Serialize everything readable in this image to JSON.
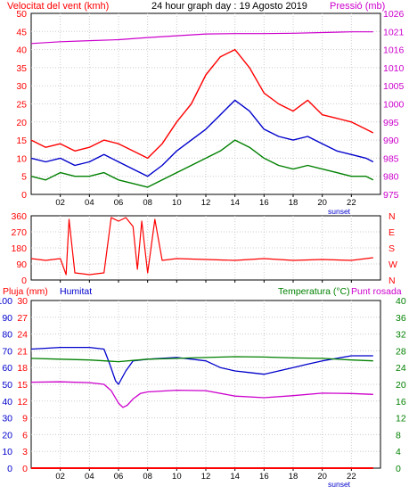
{
  "colors": {
    "background": "#ffffff",
    "frame": "#000000",
    "grid": "#cccccc",
    "speed": "#ff0000",
    "gust": "#ff0000",
    "avg_wind": "#0000cc",
    "low_wind": "#008000",
    "pressure": "#cc00cc",
    "direction": "#ff0000",
    "temperature": "#008000",
    "humidity": "#0000cc",
    "dewpoint": "#cc00cc",
    "rain": "#ff0000",
    "sunset": "#0000cc"
  },
  "header": {
    "left": "Velocitat del vent (kmh)",
    "center": "24 hour graph day : 19 Agosto 2019",
    "right": "Pressió (mb)"
  },
  "panel3_header": {
    "rain": "Pluja (mm)",
    "humidity": "Humitat",
    "temperature": "Temperatura (°C)",
    "dewpoint": "Punt rosada"
  },
  "sunset_label": "sunset",
  "chart_data": [
    {
      "type": "line",
      "title": "",
      "xlabel": "",
      "x_ticks": [
        "02",
        "04",
        "06",
        "08",
        "10",
        "12",
        "14",
        "16",
        "18",
        "20",
        "22"
      ],
      "x_range_hours": [
        0,
        24
      ],
      "y_left_label": "Velocitat del vent (kmh)",
      "y_left_ticks": [
        0,
        5,
        10,
        15,
        20,
        25,
        30,
        35,
        40,
        45,
        50
      ],
      "y_left_range": [
        0,
        50
      ],
      "y_right_label": "Pressió (mb)",
      "y_right_ticks": [
        975,
        980,
        985,
        990,
        995,
        1000,
        1005,
        1010,
        1016,
        1021,
        1026
      ],
      "y_right_range": [
        975,
        1026
      ],
      "grid": true,
      "series": [
        {
          "key": "gust",
          "hours": [
            0,
            1,
            2,
            3,
            4,
            5,
            6,
            7,
            8,
            9,
            10,
            11,
            12,
            13,
            14,
            15,
            16,
            17,
            18,
            19,
            20,
            21,
            22,
            23,
            23.5
          ],
          "values": [
            15,
            13,
            14,
            12,
            13,
            15,
            14,
            12,
            10,
            14,
            20,
            25,
            33,
            38,
            40,
            35,
            28,
            25,
            23,
            26,
            22,
            21,
            20,
            18,
            17
          ]
        },
        {
          "key": "avg_wind",
          "hours": [
            0,
            1,
            2,
            3,
            4,
            5,
            6,
            7,
            8,
            9,
            10,
            11,
            12,
            13,
            14,
            15,
            16,
            17,
            18,
            19,
            20,
            21,
            22,
            23,
            23.5
          ],
          "values": [
            10,
            9,
            10,
            8,
            9,
            11,
            9,
            7,
            5,
            8,
            12,
            15,
            18,
            22,
            26,
            23,
            18,
            16,
            15,
            16,
            14,
            12,
            11,
            10,
            9
          ]
        },
        {
          "key": "low_wind",
          "hours": [
            0,
            1,
            2,
            3,
            4,
            5,
            6,
            7,
            8,
            9,
            10,
            11,
            12,
            13,
            14,
            15,
            16,
            17,
            18,
            19,
            20,
            21,
            22,
            23,
            23.5
          ],
          "values": [
            5,
            4,
            6,
            5,
            5,
            6,
            4,
            3,
            2,
            4,
            6,
            8,
            10,
            12,
            15,
            13,
            10,
            8,
            7,
            8,
            7,
            6,
            5,
            5,
            4
          ]
        },
        {
          "key": "pressure",
          "axis": "right",
          "hours": [
            0,
            2,
            4,
            6,
            8,
            10,
            12,
            14,
            16,
            18,
            20,
            22,
            23.5
          ],
          "values": [
            1017.5,
            1018,
            1018.3,
            1018.6,
            1019.2,
            1019.7,
            1020.2,
            1020.3,
            1020.3,
            1020.4,
            1020.6,
            1020.8,
            1020.8
          ]
        }
      ]
    },
    {
      "type": "line",
      "title": "",
      "x_ticks": [
        "02",
        "04",
        "06",
        "08",
        "10",
        "12",
        "14",
        "16",
        "18",
        "20",
        "22"
      ],
      "x_range_hours": [
        0,
        24
      ],
      "y_left_ticks": [
        0,
        90,
        180,
        270,
        360
      ],
      "y_left_range": [
        0,
        360
      ],
      "y_right_ticks": [
        "N",
        "W",
        "S",
        "E",
        "N"
      ],
      "grid": true,
      "series": [
        {
          "key": "direction",
          "hours": [
            0,
            1,
            2,
            2.4,
            2.6,
            3,
            4,
            5,
            5.5,
            6,
            6.5,
            7,
            7.3,
            7.6,
            8,
            8.5,
            9,
            10,
            12,
            14,
            16,
            18,
            20,
            22,
            23.5
          ],
          "values": [
            120,
            110,
            120,
            30,
            340,
            40,
            30,
            40,
            350,
            330,
            350,
            300,
            60,
            330,
            40,
            340,
            110,
            120,
            115,
            110,
            120,
            110,
            115,
            110,
            125
          ]
        }
      ]
    },
    {
      "type": "line",
      "title": "",
      "x_ticks": [
        "02",
        "04",
        "06",
        "08",
        "10",
        "12",
        "14",
        "16",
        "18",
        "20",
        "22"
      ],
      "x_range_hours": [
        0,
        24
      ],
      "y_axes": {
        "humidity": {
          "ticks": [
            0,
            10,
            20,
            30,
            40,
            50,
            60,
            70,
            80,
            90,
            100
          ],
          "range": [
            0,
            100
          ]
        },
        "rain": {
          "ticks": [
            0,
            3,
            6,
            9,
            12,
            15,
            18,
            21,
            24,
            27,
            30
          ],
          "range": [
            0,
            30
          ]
        },
        "temperature": {
          "ticks": [
            0,
            4,
            8,
            12,
            16,
            20,
            24,
            28,
            32,
            36,
            40
          ],
          "range": [
            0,
            40
          ]
        }
      },
      "grid": true,
      "series": [
        {
          "key": "humidity",
          "axis": "humidity",
          "hours": [
            0,
            2,
            4,
            5,
            5.4,
            5.8,
            6,
            6.5,
            7,
            8,
            10,
            12,
            13,
            14,
            15,
            16,
            17,
            18,
            19,
            20,
            22,
            23.5
          ],
          "values": [
            71,
            72,
            72,
            71,
            62,
            52,
            50,
            58,
            64,
            65,
            66,
            64,
            60,
            58,
            57,
            56,
            58,
            60,
            62,
            64,
            67,
            67
          ]
        },
        {
          "key": "temperature",
          "axis": "temperature",
          "hours": [
            0,
            2,
            4,
            6,
            7,
            8,
            10,
            12,
            14,
            16,
            18,
            20,
            22,
            23.5
          ],
          "values": [
            26.2,
            26.0,
            25.8,
            25.4,
            25.7,
            26.0,
            26.2,
            26.4,
            26.6,
            26.5,
            26.3,
            26.2,
            25.8,
            25.6
          ]
        },
        {
          "key": "dewpoint",
          "axis": "temperature",
          "hours": [
            0,
            2,
            4,
            5,
            5.5,
            6,
            6.3,
            6.6,
            7,
            7.5,
            8,
            10,
            12,
            14,
            16,
            18,
            20,
            22,
            23.5
          ],
          "values": [
            20.5,
            20.6,
            20.4,
            20.0,
            18.5,
            15.5,
            14.5,
            15.0,
            16.5,
            17.8,
            18.2,
            18.6,
            18.5,
            17.2,
            16.8,
            17.3,
            17.9,
            17.8,
            17.6
          ]
        },
        {
          "key": "rain",
          "axis": "rain",
          "hours": [
            0,
            23.5
          ],
          "values": [
            0,
            0
          ]
        }
      ]
    }
  ]
}
